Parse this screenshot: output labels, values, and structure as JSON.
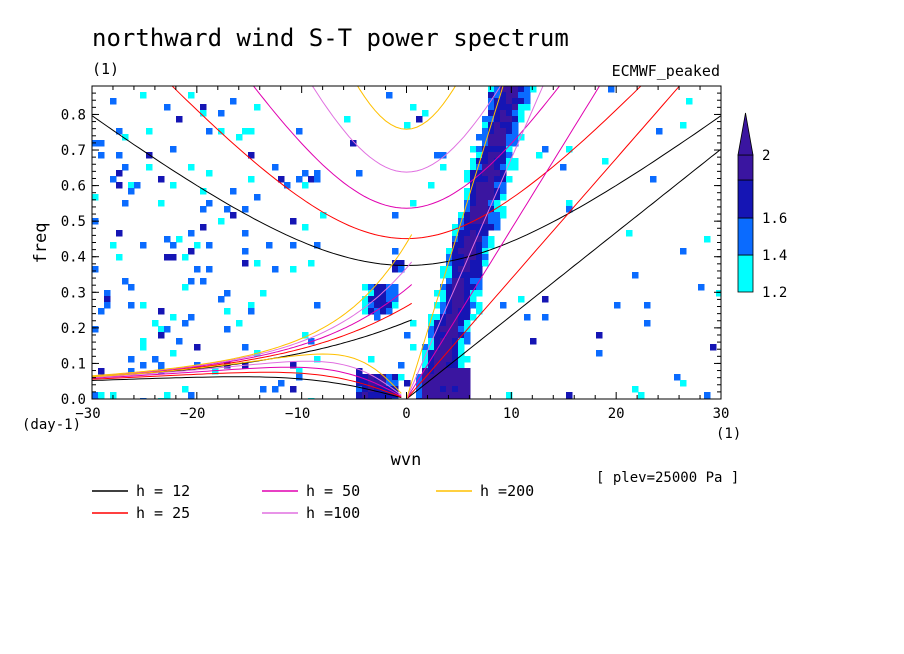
{
  "chart_data": {
    "type": "heatmap",
    "title": "northward wind S-T power spectrum",
    "units_left": "(1)",
    "model": "ECMWF_peaked",
    "xlabel": "wvn",
    "ylabel": "freq",
    "x_units": "(1)",
    "y_units": "(day-1)",
    "xlim": [
      -30,
      30
    ],
    "ylim": [
      0,
      0.88
    ],
    "xticks": [
      -30,
      -20,
      -10,
      0,
      10,
      20,
      30
    ],
    "yticks": [
      0,
      0.1,
      0.2,
      0.3,
      0.4,
      0.5,
      0.6,
      0.7,
      0.8
    ],
    "level_note": "[ plev=25000 Pa ]",
    "colorbar": {
      "levels": [
        1.2,
        1.4,
        1.6,
        2
      ],
      "colors": [
        "#00ffff",
        "#0a6bff",
        "#1515b4",
        "#3a15a0"
      ],
      "tick_labels": [
        "1.2",
        "1.4",
        "1.6",
        "2"
      ]
    },
    "dispersion_curves": [
      {
        "name": "h = 12",
        "h": 12,
        "color": "#000000"
      },
      {
        "name": "h = 25",
        "h": 25,
        "color": "#ff0000"
      },
      {
        "name": "h = 50",
        "h": 50,
        "color": "#e000b0"
      },
      {
        "name": "h =100",
        "h": 100,
        "color": "#e070e0"
      },
      {
        "name": "h =200",
        "h": 200,
        "color": "#ffc000"
      }
    ],
    "features": [
      {
        "name": "kelvin-wave-ridge",
        "x": [
          2,
          10
        ],
        "y": [
          0.0,
          0.88
        ],
        "level": 2
      },
      {
        "name": "mixed-rossby-gravity-blob",
        "x": [
          -5,
          -1
        ],
        "y": [
          0.0,
          0.07
        ],
        "level": 2
      },
      {
        "name": "isolated-patch",
        "x": [
          -4,
          -1
        ],
        "y": [
          0.24,
          0.33
        ],
        "level": 2
      }
    ]
  }
}
